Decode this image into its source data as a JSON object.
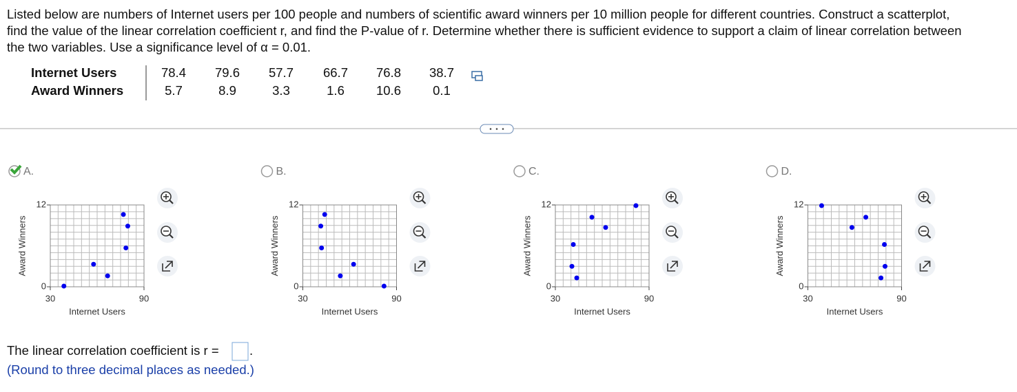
{
  "question_lines": [
    "Listed below are numbers of Internet users per 100 people and numbers of scientific award winners per 10 million people for different countries. Construct a scatterplot,",
    "find the value of the linear correlation coefficient r, and find the P-value of r. Determine whether there is sufficient evidence to support a claim of linear correlation between",
    "the two variables. Use a significance level of α = 0.01."
  ],
  "table": {
    "rows": [
      {
        "label": "Internet Users",
        "values": [
          "78.4",
          "79.6",
          "57.7",
          "66.7",
          "76.8",
          "38.7"
        ]
      },
      {
        "label": "Award Winners",
        "values": [
          "5.7",
          "8.9",
          "3.3",
          "1.6",
          "10.6",
          "0.1"
        ]
      }
    ]
  },
  "options": [
    {
      "label": "A.",
      "x_label": "Internet Users",
      "y_label": "Award Winners",
      "xlim": [
        30,
        90
      ],
      "ylim": [
        0,
        12
      ],
      "xticks": [
        30,
        90
      ],
      "yticks": [
        0,
        12
      ],
      "color": "#0000ee",
      "points": {
        "x": [
          78.4,
          79.6,
          57.7,
          66.7,
          76.8,
          38.7
        ],
        "y": [
          5.7,
          8.9,
          3.3,
          1.6,
          10.6,
          0.1
        ]
      }
    },
    {
      "label": "B.",
      "x_label": "Internet Users",
      "y_label": "Award Winners",
      "xlim": [
        30,
        90
      ],
      "ylim": [
        0,
        12
      ],
      "xticks": [
        30,
        90
      ],
      "yticks": [
        0,
        12
      ],
      "color": "#0000ee",
      "points": {
        "x": [
          44,
          41.5,
          42,
          54,
          62.5,
          82
        ],
        "y": [
          10.6,
          8.9,
          5.7,
          1.6,
          3.3,
          0.1
        ]
      }
    },
    {
      "label": "C.",
      "x_label": "Internet Users",
      "y_label": "Award Winners",
      "xlim": [
        30,
        90
      ],
      "ylim": [
        0,
        12
      ],
      "xticks": [
        30,
        90
      ],
      "yticks": [
        0,
        12
      ],
      "color": "#0000ee",
      "points": {
        "x": [
          81.6,
          53.4,
          62.2,
          41.5,
          40.6,
          43.7
        ],
        "y": [
          11.9,
          10.2,
          8.7,
          6.2,
          3.0,
          1.3
        ]
      }
    },
    {
      "label": "D.",
      "x_label": "Internet Users",
      "y_label": "Award Winners",
      "xlim": [
        30,
        90
      ],
      "ylim": [
        0,
        12
      ],
      "xticks": [
        30,
        90
      ],
      "yticks": [
        0,
        12
      ],
      "color": "#0000ee",
      "points": {
        "x": [
          38.8,
          67.1,
          58.2,
          79,
          79.4,
          76.8
        ],
        "y": [
          11.9,
          10.2,
          8.7,
          6.2,
          3.0,
          1.3
        ]
      }
    }
  ],
  "answer_prompt": "The linear correlation coefficient is r =",
  "answer_end": ".",
  "round_note": "(Round to three decimal places as needed.)"
}
